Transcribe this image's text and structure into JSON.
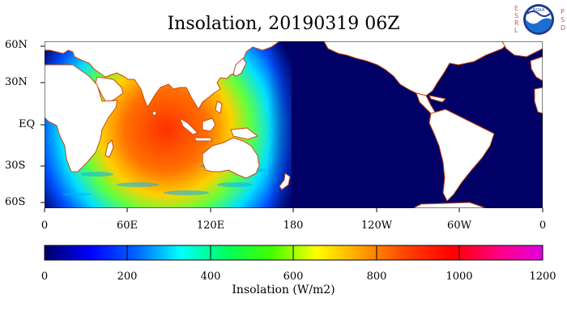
{
  "title": "Insolation, 20190319 06Z",
  "logo": {
    "emblem": "noaa-emblem",
    "emblem_text": "NOAA",
    "left_text": [
      "E",
      "S",
      "R",
      "L"
    ],
    "right_text": [
      "P",
      "S",
      "D"
    ],
    "letter_color": "#e05050"
  },
  "map": {
    "lat_labels": [
      "60N",
      "30N",
      "EQ",
      "30S",
      "60S"
    ],
    "lon_labels": [
      "0",
      "60E",
      "120E",
      "180",
      "120W",
      "60W",
      "0"
    ],
    "land_color": "#ffffff",
    "night_color": "#000066",
    "coast_color": "#c84a10"
  },
  "colorbar": {
    "ticks": [
      "0",
      "200",
      "400",
      "600",
      "800",
      "1000",
      "1200"
    ],
    "label": "Insolation (W/m2)",
    "range": [
      0,
      1200
    ],
    "stops": [
      "#000066",
      "#0000ff",
      "#0060ff",
      "#00ffff",
      "#00ff60",
      "#40ff00",
      "#ffff00",
      "#ffa000",
      "#ff4000",
      "#ff0000",
      "#ff0080",
      "#e000e0"
    ]
  }
}
